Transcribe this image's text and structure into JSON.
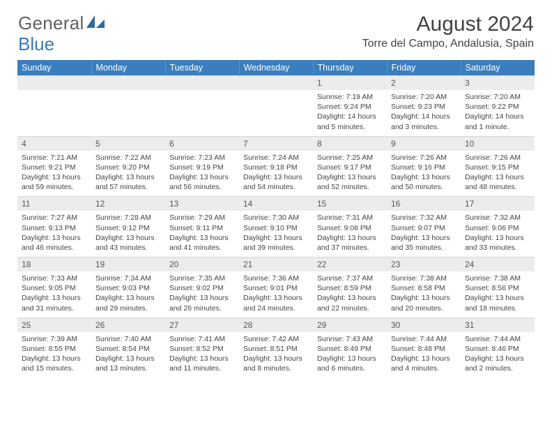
{
  "brand": {
    "part1": "General",
    "part2": "Blue"
  },
  "title": "August 2024",
  "location": "Torre del Campo, Andalusia, Spain",
  "colors": {
    "header_bg": "#3a7ebd",
    "header_text": "#ffffff",
    "daynum_bg": "#ececec",
    "text": "#444444",
    "brand_gray": "#5f5f5f",
    "brand_blue": "#3a7ab8"
  },
  "weekdays": [
    "Sunday",
    "Monday",
    "Tuesday",
    "Wednesday",
    "Thursday",
    "Friday",
    "Saturday"
  ],
  "weeks": [
    [
      null,
      null,
      null,
      null,
      {
        "n": "1",
        "sr": "Sunrise: 7:19 AM",
        "ss": "Sunset: 9:24 PM",
        "dl": "Daylight: 14 hours and 5 minutes."
      },
      {
        "n": "2",
        "sr": "Sunrise: 7:20 AM",
        "ss": "Sunset: 9:23 PM",
        "dl": "Daylight: 14 hours and 3 minutes."
      },
      {
        "n": "3",
        "sr": "Sunrise: 7:20 AM",
        "ss": "Sunset: 9:22 PM",
        "dl": "Daylight: 14 hours and 1 minute."
      }
    ],
    [
      {
        "n": "4",
        "sr": "Sunrise: 7:21 AM",
        "ss": "Sunset: 9:21 PM",
        "dl": "Daylight: 13 hours and 59 minutes."
      },
      {
        "n": "5",
        "sr": "Sunrise: 7:22 AM",
        "ss": "Sunset: 9:20 PM",
        "dl": "Daylight: 13 hours and 57 minutes."
      },
      {
        "n": "6",
        "sr": "Sunrise: 7:23 AM",
        "ss": "Sunset: 9:19 PM",
        "dl": "Daylight: 13 hours and 56 minutes."
      },
      {
        "n": "7",
        "sr": "Sunrise: 7:24 AM",
        "ss": "Sunset: 9:18 PM",
        "dl": "Daylight: 13 hours and 54 minutes."
      },
      {
        "n": "8",
        "sr": "Sunrise: 7:25 AM",
        "ss": "Sunset: 9:17 PM",
        "dl": "Daylight: 13 hours and 52 minutes."
      },
      {
        "n": "9",
        "sr": "Sunrise: 7:26 AM",
        "ss": "Sunset: 9:16 PM",
        "dl": "Daylight: 13 hours and 50 minutes."
      },
      {
        "n": "10",
        "sr": "Sunrise: 7:26 AM",
        "ss": "Sunset: 9:15 PM",
        "dl": "Daylight: 13 hours and 48 minutes."
      }
    ],
    [
      {
        "n": "11",
        "sr": "Sunrise: 7:27 AM",
        "ss": "Sunset: 9:13 PM",
        "dl": "Daylight: 13 hours and 46 minutes."
      },
      {
        "n": "12",
        "sr": "Sunrise: 7:28 AM",
        "ss": "Sunset: 9:12 PM",
        "dl": "Daylight: 13 hours and 43 minutes."
      },
      {
        "n": "13",
        "sr": "Sunrise: 7:29 AM",
        "ss": "Sunset: 9:11 PM",
        "dl": "Daylight: 13 hours and 41 minutes."
      },
      {
        "n": "14",
        "sr": "Sunrise: 7:30 AM",
        "ss": "Sunset: 9:10 PM",
        "dl": "Daylight: 13 hours and 39 minutes."
      },
      {
        "n": "15",
        "sr": "Sunrise: 7:31 AM",
        "ss": "Sunset: 9:08 PM",
        "dl": "Daylight: 13 hours and 37 minutes."
      },
      {
        "n": "16",
        "sr": "Sunrise: 7:32 AM",
        "ss": "Sunset: 9:07 PM",
        "dl": "Daylight: 13 hours and 35 minutes."
      },
      {
        "n": "17",
        "sr": "Sunrise: 7:32 AM",
        "ss": "Sunset: 9:06 PM",
        "dl": "Daylight: 13 hours and 33 minutes."
      }
    ],
    [
      {
        "n": "18",
        "sr": "Sunrise: 7:33 AM",
        "ss": "Sunset: 9:05 PM",
        "dl": "Daylight: 13 hours and 31 minutes."
      },
      {
        "n": "19",
        "sr": "Sunrise: 7:34 AM",
        "ss": "Sunset: 9:03 PM",
        "dl": "Daylight: 13 hours and 29 minutes."
      },
      {
        "n": "20",
        "sr": "Sunrise: 7:35 AM",
        "ss": "Sunset: 9:02 PM",
        "dl": "Daylight: 13 hours and 26 minutes."
      },
      {
        "n": "21",
        "sr": "Sunrise: 7:36 AM",
        "ss": "Sunset: 9:01 PM",
        "dl": "Daylight: 13 hours and 24 minutes."
      },
      {
        "n": "22",
        "sr": "Sunrise: 7:37 AM",
        "ss": "Sunset: 8:59 PM",
        "dl": "Daylight: 13 hours and 22 minutes."
      },
      {
        "n": "23",
        "sr": "Sunrise: 7:38 AM",
        "ss": "Sunset: 8:58 PM",
        "dl": "Daylight: 13 hours and 20 minutes."
      },
      {
        "n": "24",
        "sr": "Sunrise: 7:38 AM",
        "ss": "Sunset: 8:56 PM",
        "dl": "Daylight: 13 hours and 18 minutes."
      }
    ],
    [
      {
        "n": "25",
        "sr": "Sunrise: 7:39 AM",
        "ss": "Sunset: 8:55 PM",
        "dl": "Daylight: 13 hours and 15 minutes."
      },
      {
        "n": "26",
        "sr": "Sunrise: 7:40 AM",
        "ss": "Sunset: 8:54 PM",
        "dl": "Daylight: 13 hours and 13 minutes."
      },
      {
        "n": "27",
        "sr": "Sunrise: 7:41 AM",
        "ss": "Sunset: 8:52 PM",
        "dl": "Daylight: 13 hours and 11 minutes."
      },
      {
        "n": "28",
        "sr": "Sunrise: 7:42 AM",
        "ss": "Sunset: 8:51 PM",
        "dl": "Daylight: 13 hours and 8 minutes."
      },
      {
        "n": "29",
        "sr": "Sunrise: 7:43 AM",
        "ss": "Sunset: 8:49 PM",
        "dl": "Daylight: 13 hours and 6 minutes."
      },
      {
        "n": "30",
        "sr": "Sunrise: 7:44 AM",
        "ss": "Sunset: 8:48 PM",
        "dl": "Daylight: 13 hours and 4 minutes."
      },
      {
        "n": "31",
        "sr": "Sunrise: 7:44 AM",
        "ss": "Sunset: 8:46 PM",
        "dl": "Daylight: 13 hours and 2 minutes."
      }
    ]
  ]
}
